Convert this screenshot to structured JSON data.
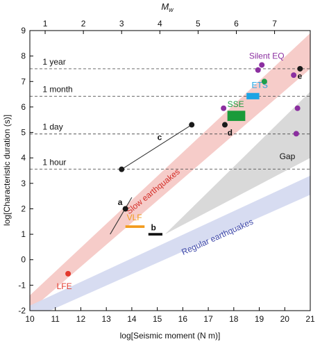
{
  "chart_data": {
    "type": "scatter",
    "xlabel": "log[Seismic moment (N m)]",
    "ylabel": "log[Characteristic duration (s)]",
    "top_axis_label": "M",
    "top_axis_label_sub": "w",
    "xlim": [
      10,
      21
    ],
    "ylim": [
      -2,
      9
    ],
    "x_ticks": [
      10,
      11,
      12,
      13,
      14,
      15,
      16,
      17,
      18,
      19,
      20,
      21
    ],
    "y_ticks": [
      -2,
      -1,
      0,
      1,
      2,
      3,
      4,
      5,
      6,
      7,
      8,
      9
    ],
    "top_ticks": [
      1,
      2,
      3,
      4,
      5,
      6,
      7
    ],
    "reference_lines": [
      {
        "label": "1 year",
        "y": 7.5
      },
      {
        "label": "1 month",
        "y": 6.42
      },
      {
        "label": "1 day",
        "y": 4.94
      },
      {
        "label": "1 hour",
        "y": 3.56
      }
    ],
    "bands": [
      {
        "label": "Slow earthquakes",
        "color": "#f6c9c6"
      },
      {
        "label": "Regular earthquakes",
        "color": "#d5daf0"
      },
      {
        "label": "Gap",
        "color": "#d9d9d9"
      }
    ],
    "label_colors": {
      "slow": "#d4302a",
      "regular": "#3c46a8"
    },
    "points": [
      {
        "label": "LFE",
        "x": 11.5,
        "y": -0.55,
        "color": "#e3382c"
      },
      {
        "label": "Silent EQ",
        "x": 18.95,
        "y": 7.45,
        "color": "#8b2fa0"
      },
      {
        "label": "",
        "x": 19.1,
        "y": 7.65,
        "color": "#8b2fa0"
      },
      {
        "label": "",
        "x": 20.35,
        "y": 7.25,
        "color": "#8b2fa0"
      },
      {
        "label": "",
        "x": 17.6,
        "y": 5.95,
        "color": "#8b2fa0"
      },
      {
        "label": "",
        "x": 20.5,
        "y": 5.95,
        "color": "#8b2fa0"
      },
      {
        "label": "",
        "x": 20.45,
        "y": 4.95,
        "color": "#8b2fa0"
      },
      {
        "label": "",
        "x": 19.2,
        "y": 7.0,
        "color": "#1e9e4a"
      },
      {
        "label": "d",
        "x": 17.65,
        "y": 5.3,
        "color": "#1a1a1a"
      },
      {
        "label": "e",
        "x": 20.6,
        "y": 7.5,
        "color": "#1a1a1a"
      }
    ],
    "segments": [
      {
        "label": "a",
        "x": [
          13.15,
          14.0
        ],
        "y": [
          1.0,
          2.45
        ],
        "color": "#333333",
        "endpoint": [
          13.75,
          2.0
        ]
      },
      {
        "label": "c",
        "x": [
          13.6,
          16.35
        ],
        "y": [
          3.55,
          5.3
        ],
        "color": "#333333"
      }
    ],
    "rects": [
      {
        "label": "VLF",
        "x": [
          13.75,
          14.5
        ],
        "y": [
          1.25,
          1.35
        ],
        "color": "#f29b1d"
      },
      {
        "label": "b",
        "x": [
          14.65,
          15.2
        ],
        "y": [
          0.95,
          1.05
        ],
        "color": "#111111"
      },
      {
        "label": "SSE",
        "x": [
          17.75,
          18.45
        ],
        "y": [
          5.45,
          5.85
        ],
        "color": "#1a9b3a"
      },
      {
        "label": "ETS",
        "x": [
          18.5,
          19.0
        ],
        "y": [
          6.3,
          6.55
        ],
        "color": "#1ca4e4"
      }
    ]
  }
}
